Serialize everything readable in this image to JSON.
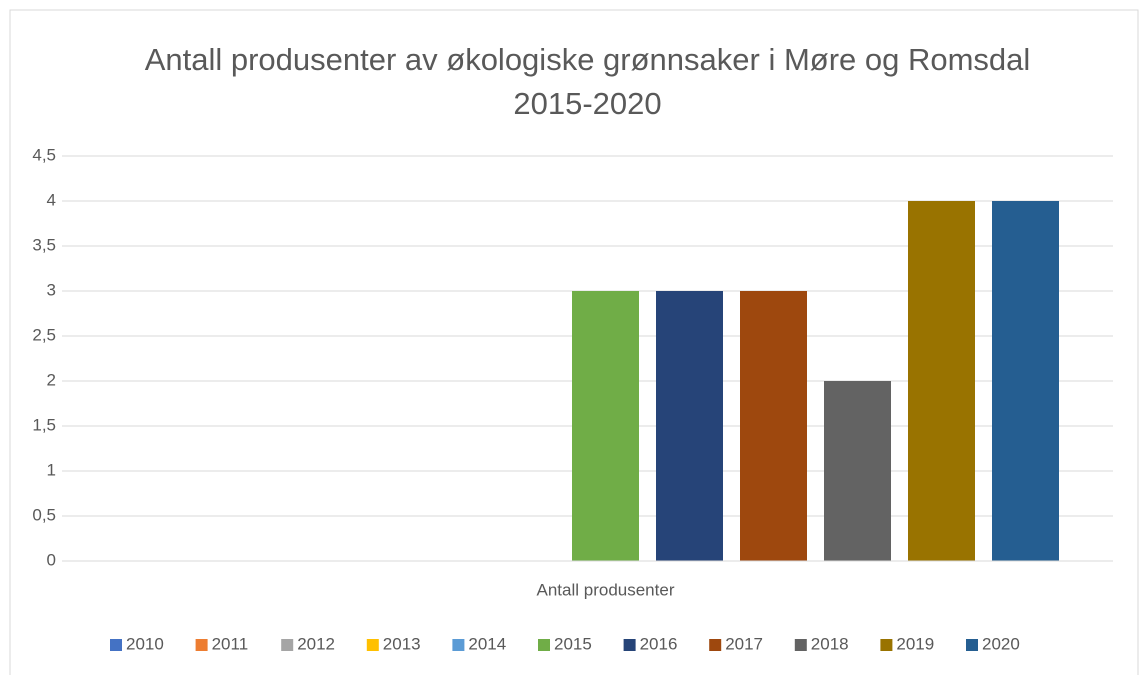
{
  "chart_data": {
    "type": "bar",
    "title": "Antall produsenter av økologiske grønnsaker i Møre og Romsdal 2015-2020",
    "categories": [
      "Antall produsenter"
    ],
    "series": [
      {
        "name": "2010",
        "color": "#4472c4",
        "values": [
          0
        ]
      },
      {
        "name": "2011",
        "color": "#ed7d31",
        "values": [
          0
        ]
      },
      {
        "name": "2012",
        "color": "#a5a5a5",
        "values": [
          0
        ]
      },
      {
        "name": "2013",
        "color": "#ffc000",
        "values": [
          0
        ]
      },
      {
        "name": "2014",
        "color": "#5b9bd5",
        "values": [
          0
        ]
      },
      {
        "name": "2015",
        "color": "#70ad47",
        "values": [
          3
        ]
      },
      {
        "name": "2016",
        "color": "#264478",
        "values": [
          3
        ]
      },
      {
        "name": "2017",
        "color": "#9e480e",
        "values": [
          3
        ]
      },
      {
        "name": "2018",
        "color": "#636363",
        "values": [
          2
        ]
      },
      {
        "name": "2019",
        "color": "#997300",
        "values": [
          4
        ]
      },
      {
        "name": "2020",
        "color": "#255e91",
        "values": [
          4
        ]
      }
    ],
    "ylim": [
      0,
      4.5
    ],
    "yticks": [
      0,
      {
        "value": 0.5,
        "label": "0,5"
      },
      1,
      {
        "value": 1.5,
        "label": "1,5"
      },
      2,
      {
        "value": 2.5,
        "label": "2,5"
      },
      3,
      {
        "value": 3.5,
        "label": "3,5"
      },
      4,
      {
        "value": 4.5,
        "label": "4,5"
      }
    ],
    "grid": true,
    "legend": "bottom"
  }
}
